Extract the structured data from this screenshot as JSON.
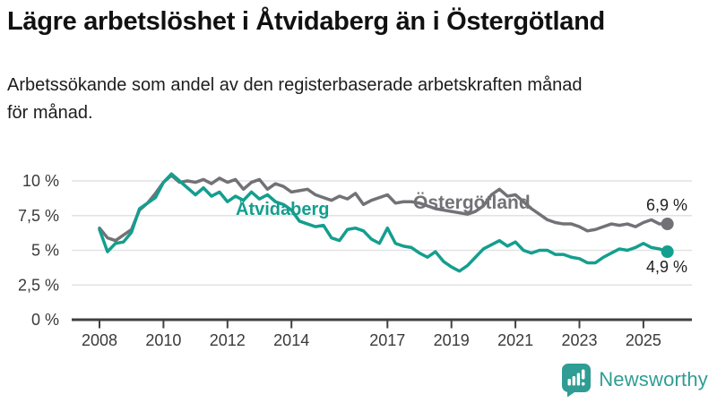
{
  "header": {
    "title": "Lägre arbetslöshet i Åtvidaberg än i Östergötland",
    "subtitle": "Arbetssökande som andel av den registerbaserade arbetskraften månad för månad.",
    "subtitle_lines": [
      "Arbetssökande som andel av den registerbaserade arbetskraften månad",
      "för månad."
    ]
  },
  "footer": {
    "brand": "Newsworthy",
    "brand_color": "#2f9d93",
    "logo_icon": "speech-bubble-bar-chart-exclamation"
  },
  "chart_data": {
    "type": "line",
    "title": "Lägre arbetslöshet i Åtvidaberg än i Östergötland",
    "xlabel": "",
    "ylabel": "Arbetssökande som andel av den registerbaserade arbetskraften",
    "unit": "%",
    "xlim": [
      2008,
      2025.9
    ],
    "ylim": [
      0,
      10.6
    ],
    "grid": "horizontal",
    "legend_position": "inline-labels",
    "y_ticks": [
      {
        "v": 0,
        "label": "0 %"
      },
      {
        "v": 2.5,
        "label": "2,5 %"
      },
      {
        "v": 5,
        "label": "5 %"
      },
      {
        "v": 7.5,
        "label": "7,5 %"
      },
      {
        "v": 10,
        "label": "10 %"
      }
    ],
    "x_ticks": [
      {
        "v": 2008,
        "label": "2008"
      },
      {
        "v": 2010,
        "label": "2010"
      },
      {
        "v": 2012,
        "label": "2012"
      },
      {
        "v": 2014,
        "label": "2014"
      },
      {
        "v": 2017,
        "label": "2017"
      },
      {
        "v": 2019,
        "label": "2019"
      },
      {
        "v": 2021,
        "label": "2021"
      },
      {
        "v": 2023,
        "label": "2023"
      },
      {
        "v": 2025,
        "label": "2025"
      }
    ],
    "x": [
      2008.0,
      2008.25,
      2008.5,
      2008.75,
      2009.0,
      2009.25,
      2009.5,
      2009.75,
      2010.0,
      2010.25,
      2010.5,
      2010.75,
      2011.0,
      2011.25,
      2011.5,
      2011.75,
      2012.0,
      2012.25,
      2012.5,
      2012.75,
      2013.0,
      2013.25,
      2013.5,
      2013.75,
      2014.0,
      2014.25,
      2014.5,
      2014.75,
      2015.0,
      2015.25,
      2015.5,
      2015.75,
      2016.0,
      2016.25,
      2016.5,
      2016.75,
      2017.0,
      2017.25,
      2017.5,
      2017.75,
      2018.0,
      2018.25,
      2018.5,
      2018.75,
      2019.0,
      2019.25,
      2019.5,
      2019.75,
      2020.0,
      2020.25,
      2020.5,
      2020.75,
      2021.0,
      2021.25,
      2021.5,
      2021.75,
      2022.0,
      2022.25,
      2022.5,
      2022.75,
      2023.0,
      2023.25,
      2023.5,
      2023.75,
      2024.0,
      2024.25,
      2024.5,
      2024.75,
      2025.0,
      2025.25,
      2025.5,
      2025.75
    ],
    "series": [
      {
        "name": "Åtvidaberg",
        "color": "#149e8f",
        "end_value": 4.9,
        "end_label": "4,9 %",
        "values": [
          6.5,
          4.9,
          5.5,
          5.6,
          6.3,
          8.0,
          8.4,
          8.8,
          9.9,
          10.5,
          10.0,
          9.5,
          9.0,
          9.5,
          8.9,
          9.2,
          8.5,
          8.9,
          8.6,
          9.2,
          8.7,
          9.0,
          8.5,
          8.3,
          7.9,
          7.1,
          6.9,
          6.7,
          6.8,
          5.9,
          5.7,
          6.5,
          6.6,
          6.4,
          5.8,
          5.5,
          6.6,
          5.5,
          5.3,
          5.2,
          4.8,
          4.5,
          4.9,
          4.2,
          3.8,
          3.5,
          3.9,
          4.5,
          5.1,
          5.4,
          5.7,
          5.3,
          5.6,
          5.0,
          4.8,
          5.0,
          5.0,
          4.7,
          4.7,
          4.5,
          4.4,
          4.1,
          4.1,
          4.5,
          4.8,
          5.1,
          5.0,
          5.2,
          5.5,
          5.2,
          5.1,
          4.9
        ]
      },
      {
        "name": "Östergötland",
        "color": "#727276",
        "end_value": 6.9,
        "end_label": "6,9 %",
        "values": [
          6.6,
          5.9,
          5.7,
          6.1,
          6.5,
          7.9,
          8.4,
          9.1,
          9.9,
          10.4,
          9.9,
          10.0,
          9.9,
          10.1,
          9.8,
          10.2,
          9.9,
          10.1,
          9.4,
          9.9,
          10.1,
          9.4,
          9.8,
          9.6,
          9.2,
          9.3,
          9.4,
          9.0,
          8.8,
          8.6,
          8.9,
          8.7,
          9.1,
          8.3,
          8.6,
          8.8,
          9.0,
          8.4,
          8.5,
          8.5,
          8.4,
          8.2,
          8.0,
          7.9,
          7.8,
          7.7,
          7.6,
          7.8,
          8.2,
          9.0,
          9.4,
          8.9,
          9.0,
          8.5,
          8.0,
          7.6,
          7.2,
          7.0,
          6.9,
          6.9,
          6.7,
          6.4,
          6.5,
          6.7,
          6.9,
          6.8,
          6.9,
          6.7,
          7.0,
          7.2,
          6.9,
          6.9
        ]
      }
    ]
  }
}
